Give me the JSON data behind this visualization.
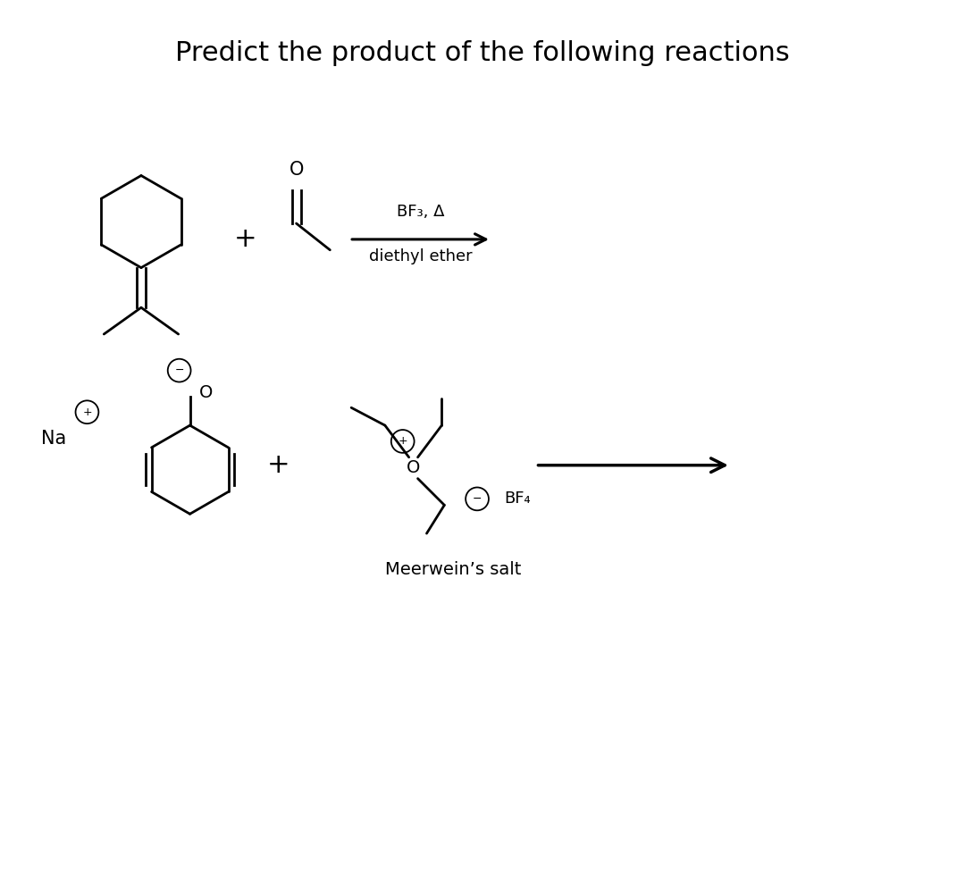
{
  "title": "Predict the product of the following reactions",
  "title_fontsize": 22,
  "background_color": "#ffffff",
  "text_color": "#000000",
  "reaction1": {
    "above_arrow": "BF₃, Δ",
    "below_arrow": "diethyl ether"
  },
  "reaction2": {
    "na_label": "Na",
    "meerwein_label": "Meerwein’s salt",
    "bf4_label": "BF₄"
  }
}
